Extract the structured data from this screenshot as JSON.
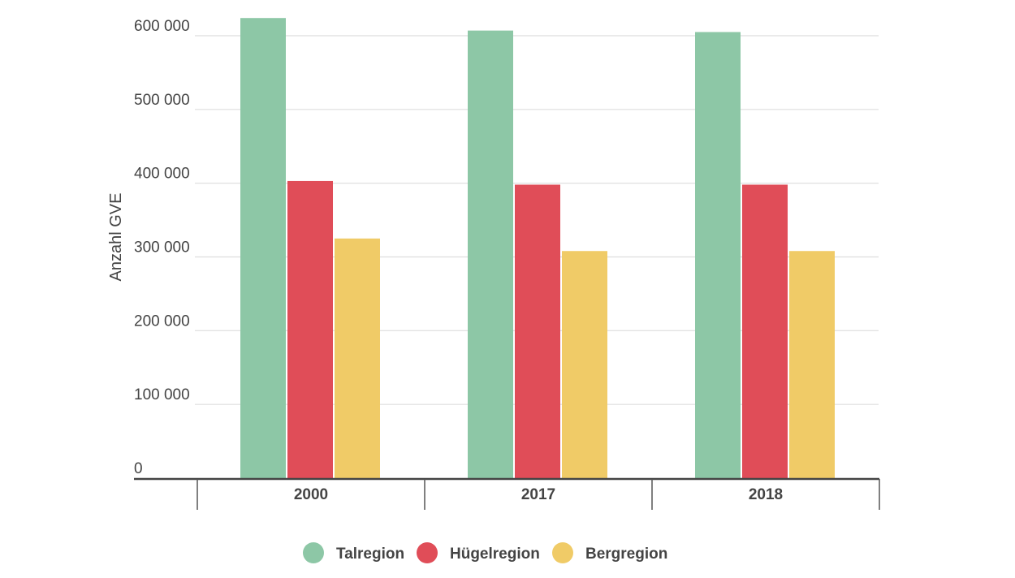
{
  "chart_data": {
    "type": "bar",
    "title": "",
    "xlabel": "",
    "ylabel": "Anzahl GVE",
    "categories": [
      "2000",
      "2017",
      "2018"
    ],
    "series": [
      {
        "name": "Talregion",
        "color": "#8dc7a6",
        "values": [
          624000,
          607000,
          605000
        ]
      },
      {
        "name": "Hügelregion",
        "color": "#e04d58",
        "values": [
          403000,
          398000,
          398000
        ]
      },
      {
        "name": "Bergregion",
        "color": "#f0cb67",
        "values": [
          325000,
          308000,
          308000
        ]
      }
    ],
    "ylim": [
      0,
      600000
    ],
    "yticks": [
      0,
      100000,
      200000,
      300000,
      400000,
      500000,
      600000
    ],
    "ytick_labels": [
      "0",
      "100 000",
      "200 000",
      "300 000",
      "400 000",
      "500 000",
      "600 000"
    ],
    "grid": true,
    "legend_position": "bottom"
  }
}
